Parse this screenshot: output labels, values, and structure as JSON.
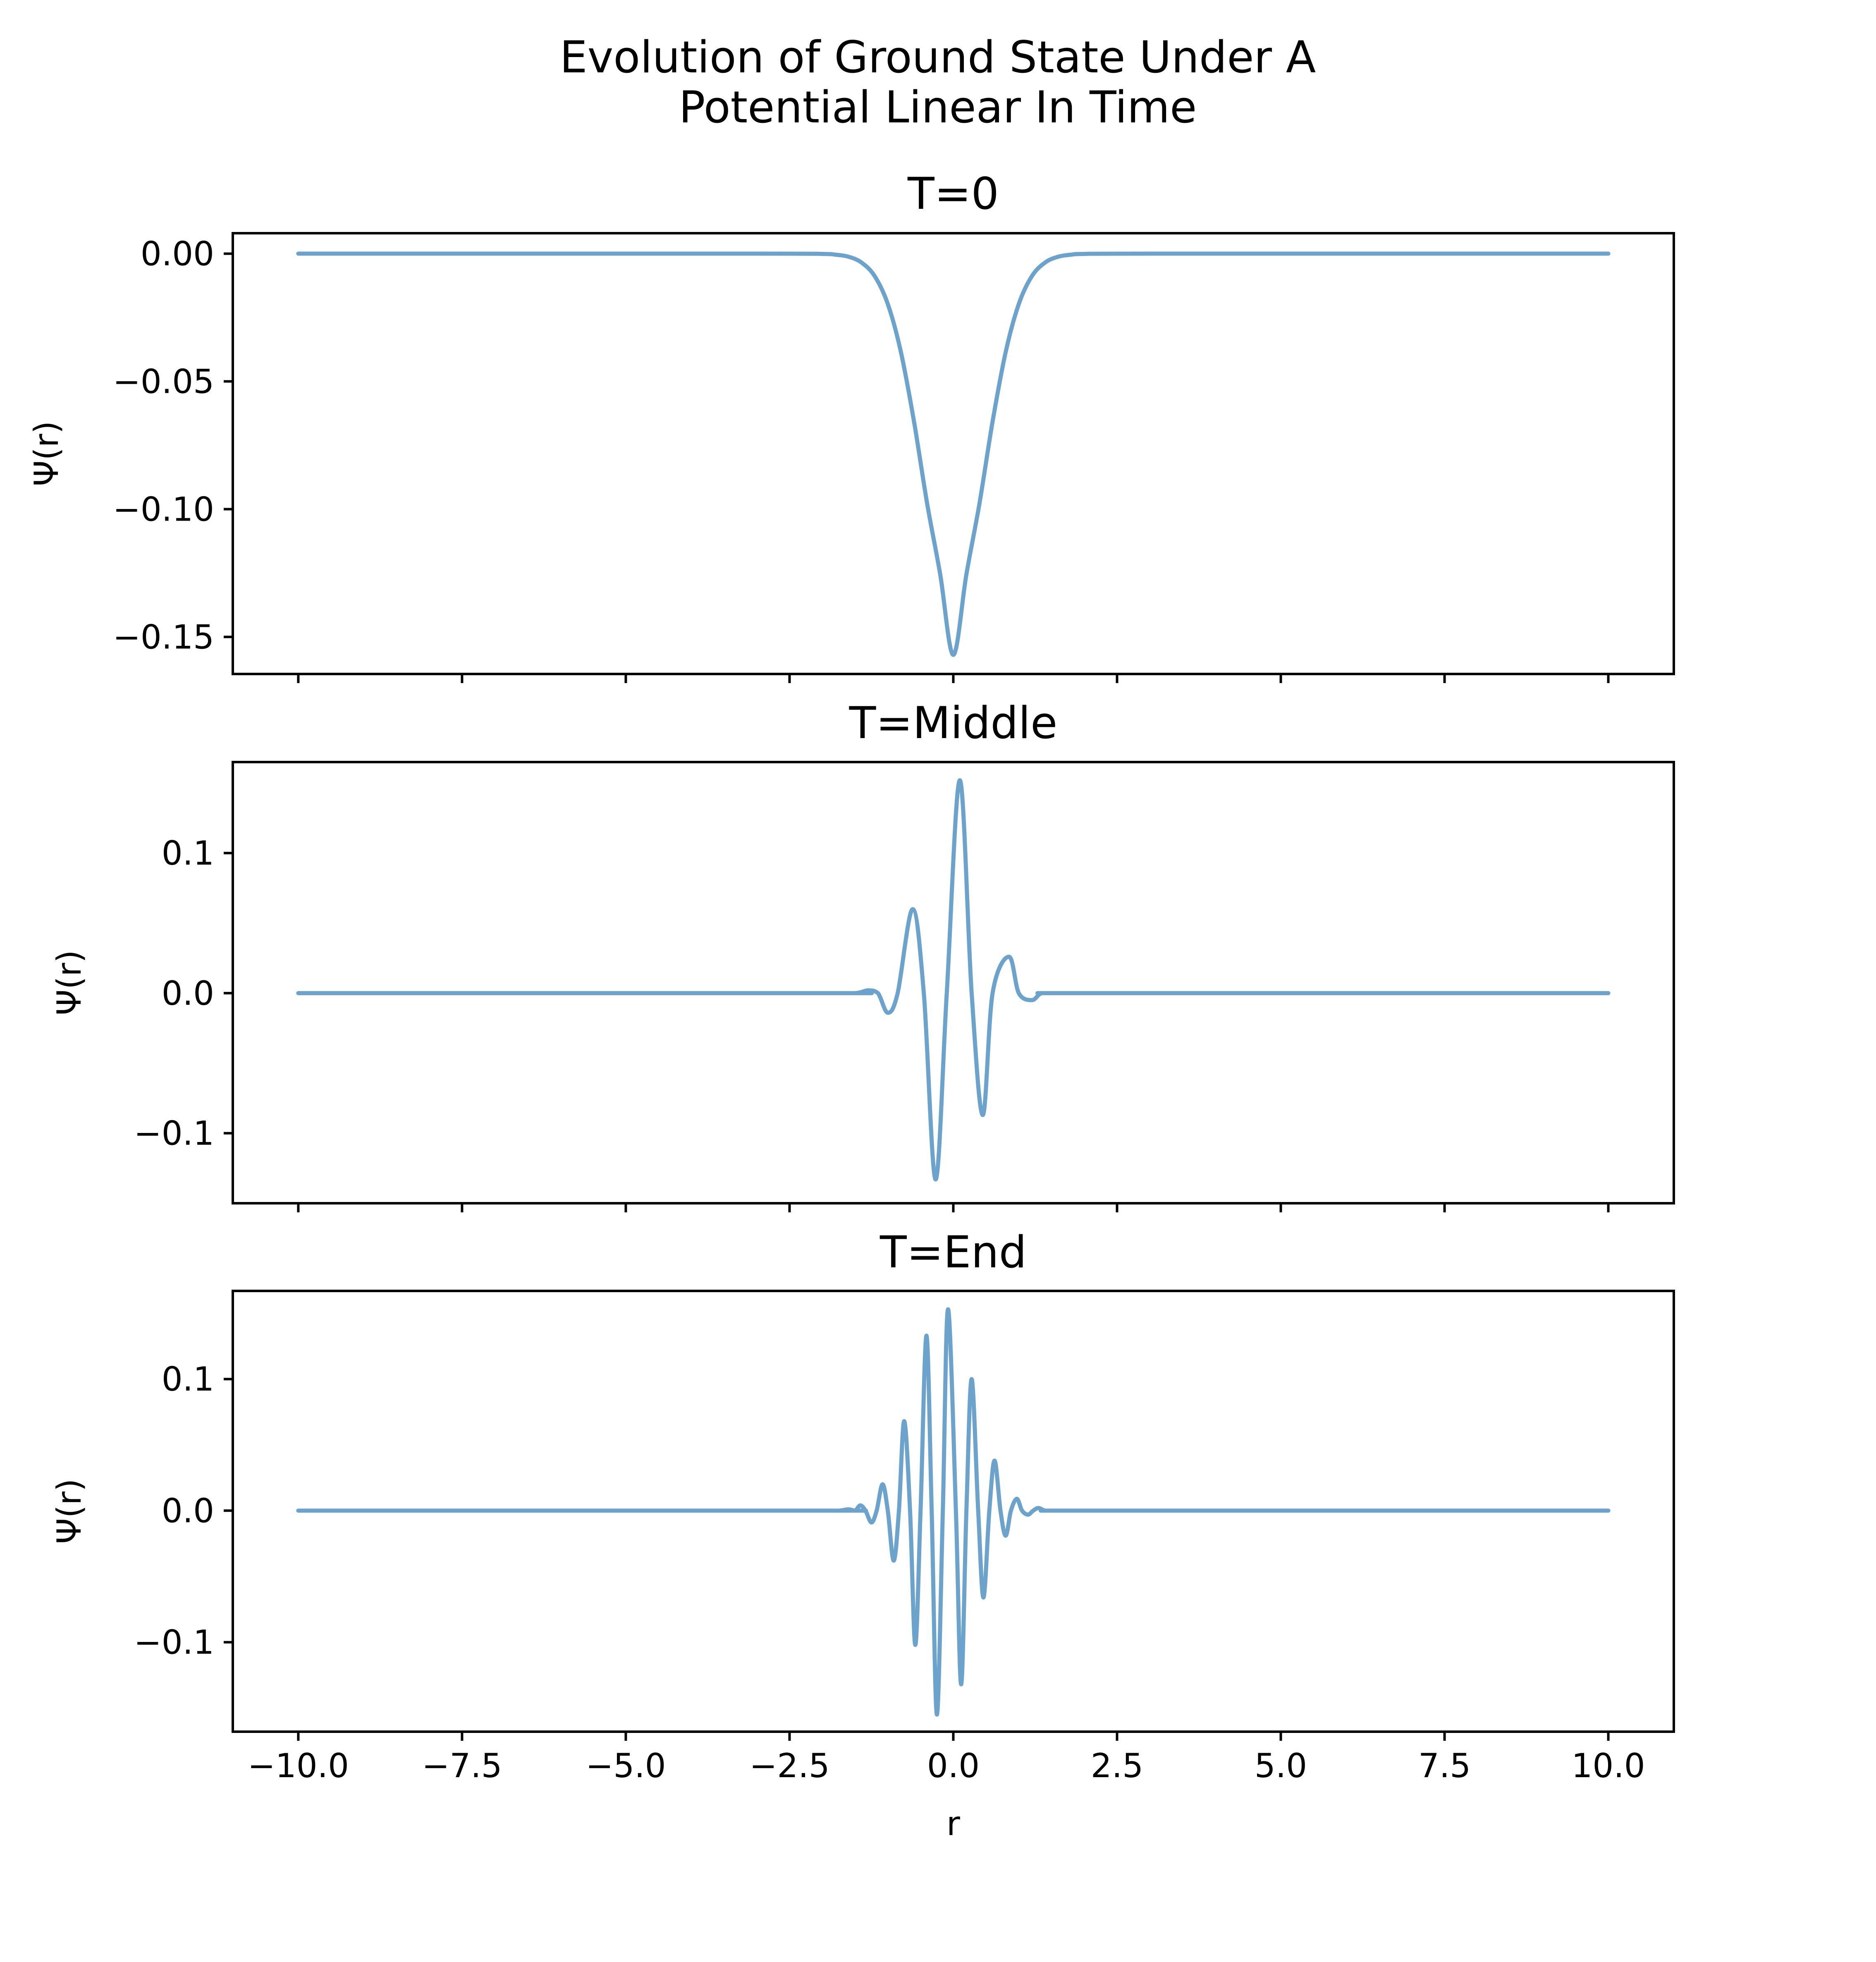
{
  "figure": {
    "title_line1": "Evolution of Ground State Under A",
    "title_line2": "Potential Linear In Time",
    "line_color": "#6ca3cc"
  },
  "chart_data": [
    {
      "type": "line",
      "title": "T=0",
      "xlabel": "",
      "ylabel": "Ψ(r)",
      "xlim": [
        -11.0,
        11.0
      ],
      "ylim": [
        -0.1645,
        0.008
      ],
      "xticks": [
        -10.0,
        -7.5,
        -5.0,
        -2.5,
        0.0,
        2.5,
        5.0,
        7.5,
        10.0
      ],
      "xtick_labels_shown": false,
      "yticks": [
        0.0,
        -0.05,
        -0.1,
        -0.15
      ],
      "ytick_labels": [
        "0.00",
        "−0.05",
        "−0.10",
        "−0.15"
      ],
      "series": [
        {
          "x": [
            -10.0,
            -3.0,
            -2.0,
            -1.8,
            -1.6,
            -1.4,
            -1.2,
            -1.0,
            -0.8,
            -0.6,
            -0.4,
            -0.2,
            0.0,
            0.2,
            0.4,
            0.6,
            0.8,
            1.0,
            1.2,
            1.4,
            1.6,
            1.8,
            2.0,
            3.0,
            10.0
          ],
          "y": [
            0.0,
            0.0,
            -0.0001,
            -0.0004,
            -0.0012,
            -0.0035,
            -0.0088,
            -0.0197,
            -0.0385,
            -0.0657,
            -0.0977,
            -0.1255,
            -0.157,
            -0.1255,
            -0.0977,
            -0.0657,
            -0.0385,
            -0.0197,
            -0.0088,
            -0.0035,
            -0.0012,
            -0.0004,
            -0.0001,
            0.0,
            0.0
          ]
        }
      ]
    },
    {
      "type": "line",
      "title": "T=Middle",
      "xlabel": "",
      "ylabel": "Ψ(r)",
      "xlim": [
        -11.0,
        11.0
      ],
      "ylim": [
        -0.15,
        0.165
      ],
      "xticks": [
        -10.0,
        -7.5,
        -5.0,
        -2.5,
        0.0,
        2.5,
        5.0,
        7.5,
        10.0
      ],
      "xtick_labels_shown": false,
      "yticks": [
        0.1,
        0.0,
        -0.1
      ],
      "ytick_labels": [
        "0.1",
        "0.0",
        "−0.1"
      ],
      "series": [
        {
          "x": [
            -10.0,
            -2.0,
            -1.5,
            -1.3,
            -1.15,
            -1.0,
            -0.85,
            -0.62,
            -0.45,
            -0.27,
            -0.1,
            0.1,
            0.28,
            0.45,
            0.6,
            0.85,
            1.0,
            1.2,
            1.35,
            1.6,
            2.0,
            10.0
          ],
          "y": [
            0.0,
            0.0,
            0.0,
            0.002,
            0.0,
            -0.014,
            0.0,
            0.06,
            0.0,
            -0.133,
            0.0,
            0.152,
            0.0,
            -0.087,
            0.0,
            0.026,
            0.0,
            -0.005,
            0.0,
            0.0,
            0.0,
            0.0
          ]
        }
      ]
    },
    {
      "type": "line",
      "title": "T=End",
      "xlabel": "r",
      "ylabel": "Ψ(r)",
      "xlim": [
        -11.0,
        11.0
      ],
      "ylim": [
        -0.168,
        0.167
      ],
      "xticks": [
        -10.0,
        -7.5,
        -5.0,
        -2.5,
        0.0,
        2.5,
        5.0,
        7.5,
        10.0
      ],
      "xtick_labels_shown": true,
      "xtick_labels": [
        "−10.0",
        "−7.5",
        "−5.0",
        "−2.5",
        "0.0",
        "2.5",
        "5.0",
        "7.5",
        "10.0"
      ],
      "yticks": [
        0.1,
        0.0,
        -0.1
      ],
      "ytick_labels": [
        "0.1",
        "0.0",
        "−0.1"
      ],
      "series": [
        {
          "x": [
            -10.0,
            -2.0,
            -1.75,
            -1.6,
            -1.5,
            -1.42,
            -1.34,
            -1.25,
            -1.17,
            -1.08,
            -1.0,
            -0.91,
            -0.83,
            -0.75,
            -0.66,
            -0.58,
            -0.5,
            -0.41,
            -0.33,
            -0.25,
            -0.16,
            -0.08,
            0.04,
            0.12,
            0.2,
            0.28,
            0.38,
            0.46,
            0.55,
            0.63,
            0.72,
            0.8,
            0.88,
            0.97,
            1.05,
            1.14,
            1.22,
            1.3,
            1.4,
            1.5,
            1.6,
            1.75,
            2.0,
            10.0
          ],
          "y": [
            0.0,
            0.0,
            0.0,
            0.001,
            0.0,
            0.004,
            0.0,
            -0.009,
            0.0,
            0.02,
            0.0,
            -0.038,
            0.0,
            0.068,
            0.0,
            -0.102,
            0.0,
            0.133,
            0.0,
            -0.155,
            0.0,
            0.153,
            0.0,
            -0.132,
            0.0,
            0.1,
            0.0,
            -0.066,
            0.0,
            0.038,
            0.0,
            -0.019,
            0.0,
            0.009,
            0.0,
            -0.003,
            0.0,
            0.002,
            0.0,
            0.0,
            0.0,
            0.0,
            0.0,
            0.0
          ]
        }
      ]
    }
  ]
}
